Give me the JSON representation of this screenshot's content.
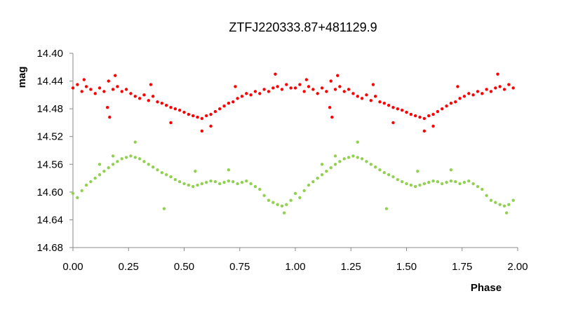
{
  "chart_data": {
    "type": "scatter",
    "title": "ZTFJ220333.87+481129.9",
    "xlabel": "Phase",
    "ylabel": "mag",
    "xlim": [
      0.0,
      2.0
    ],
    "ylim": [
      14.4,
      14.68
    ],
    "y_inverted": true,
    "grid": false,
    "legend": "none",
    "x_ticks": [
      "0.00",
      "0.25",
      "0.50",
      "0.75",
      "1.00",
      "1.25",
      "1.50",
      "1.75",
      "2.00"
    ],
    "y_ticks": [
      "14.40",
      "14.44",
      "14.48",
      "14.52",
      "14.56",
      "14.60",
      "14.64",
      "14.68"
    ],
    "series": [
      {
        "color": "#ff0000",
        "points": [
          [
            0.0,
            14.45
          ],
          [
            0.02,
            14.445
          ],
          [
            0.04,
            14.455
          ],
          [
            0.06,
            14.448
          ],
          [
            0.08,
            14.452
          ],
          [
            0.1,
            14.458
          ],
          [
            0.12,
            14.45
          ],
          [
            0.14,
            14.455
          ],
          [
            0.16,
            14.44
          ],
          [
            0.18,
            14.452
          ],
          [
            0.2,
            14.448
          ],
          [
            0.22,
            14.455
          ],
          [
            0.24,
            14.452
          ],
          [
            0.26,
            14.458
          ],
          [
            0.28,
            14.462
          ],
          [
            0.3,
            14.465
          ],
          [
            0.32,
            14.46
          ],
          [
            0.34,
            14.468
          ],
          [
            0.36,
            14.462
          ],
          [
            0.38,
            14.47
          ],
          [
            0.4,
            14.472
          ],
          [
            0.42,
            14.475
          ],
          [
            0.44,
            14.478
          ],
          [
            0.46,
            14.48
          ],
          [
            0.48,
            14.482
          ],
          [
            0.5,
            14.485
          ],
          [
            0.52,
            14.488
          ],
          [
            0.54,
            14.49
          ],
          [
            0.56,
            14.492
          ],
          [
            0.58,
            14.494
          ],
          [
            0.6,
            14.49
          ],
          [
            0.62,
            14.488
          ],
          [
            0.64,
            14.484
          ],
          [
            0.66,
            14.48
          ],
          [
            0.68,
            14.476
          ],
          [
            0.7,
            14.472
          ],
          [
            0.72,
            14.47
          ],
          [
            0.74,
            14.465
          ],
          [
            0.76,
            14.462
          ],
          [
            0.78,
            14.458
          ],
          [
            0.8,
            14.46
          ],
          [
            0.82,
            14.455
          ],
          [
            0.84,
            14.458
          ],
          [
            0.86,
            14.452
          ],
          [
            0.88,
            14.455
          ],
          [
            0.9,
            14.45
          ],
          [
            0.92,
            14.448
          ],
          [
            0.94,
            14.452
          ],
          [
            0.96,
            14.445
          ],
          [
            0.98,
            14.45
          ],
          [
            0.165,
            14.492
          ],
          [
            0.155,
            14.478
          ],
          [
            0.58,
            14.512
          ],
          [
            0.62,
            14.505
          ],
          [
            0.91,
            14.43
          ],
          [
            0.44,
            14.5
          ],
          [
            0.19,
            14.432
          ],
          [
            0.05,
            14.438
          ],
          [
            0.73,
            14.448
          ],
          [
            0.35,
            14.445
          ]
        ]
      },
      {
        "color": "#92d050",
        "points": [
          [
            0.0,
            14.602
          ],
          [
            0.02,
            14.608
          ],
          [
            0.04,
            14.598
          ],
          [
            0.06,
            14.59
          ],
          [
            0.08,
            14.585
          ],
          [
            0.1,
            14.58
          ],
          [
            0.12,
            14.575
          ],
          [
            0.14,
            14.57
          ],
          [
            0.16,
            14.565
          ],
          [
            0.18,
            14.56
          ],
          [
            0.2,
            14.556
          ],
          [
            0.22,
            14.552
          ],
          [
            0.24,
            14.55
          ],
          [
            0.26,
            14.548
          ],
          [
            0.28,
            14.55
          ],
          [
            0.3,
            14.552
          ],
          [
            0.32,
            14.556
          ],
          [
            0.34,
            14.56
          ],
          [
            0.36,
            14.564
          ],
          [
            0.38,
            14.568
          ],
          [
            0.4,
            14.572
          ],
          [
            0.42,
            14.575
          ],
          [
            0.44,
            14.578
          ],
          [
            0.46,
            14.582
          ],
          [
            0.48,
            14.585
          ],
          [
            0.5,
            14.588
          ],
          [
            0.52,
            14.59
          ],
          [
            0.54,
            14.592
          ],
          [
            0.56,
            14.59
          ],
          [
            0.58,
            14.588
          ],
          [
            0.6,
            14.586
          ],
          [
            0.62,
            14.584
          ],
          [
            0.64,
            14.585
          ],
          [
            0.66,
            14.588
          ],
          [
            0.68,
            14.586
          ],
          [
            0.7,
            14.584
          ],
          [
            0.72,
            14.585
          ],
          [
            0.74,
            14.588
          ],
          [
            0.76,
            14.586
          ],
          [
            0.78,
            14.584
          ],
          [
            0.8,
            14.588
          ],
          [
            0.82,
            14.592
          ],
          [
            0.84,
            14.596
          ],
          [
            0.86,
            14.605
          ],
          [
            0.88,
            14.612
          ],
          [
            0.9,
            14.615
          ],
          [
            0.92,
            14.618
          ],
          [
            0.94,
            14.62
          ],
          [
            0.96,
            14.618
          ],
          [
            0.98,
            14.612
          ],
          [
            0.41,
            14.624
          ],
          [
            0.28,
            14.528
          ],
          [
            0.55,
            14.57
          ],
          [
            0.18,
            14.548
          ],
          [
            0.95,
            14.63
          ],
          [
            0.7,
            14.568
          ],
          [
            0.12,
            14.56
          ]
        ]
      }
    ]
  }
}
